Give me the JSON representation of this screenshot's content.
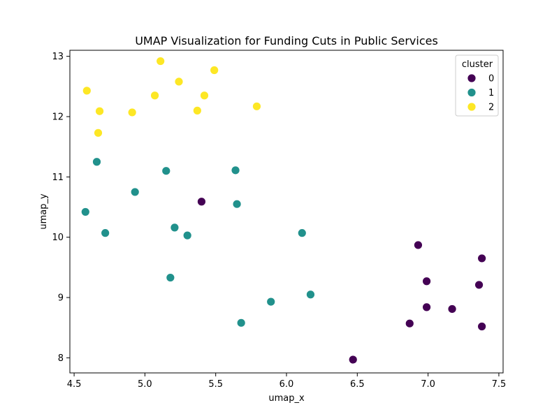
{
  "chart_data": {
    "type": "scatter",
    "title": "UMAP Visualization for Funding Cuts in Public Services",
    "xlabel": "umap_x",
    "ylabel": "umap_y",
    "xlim": [
      4.47,
      7.53
    ],
    "ylim": [
      7.75,
      13.1
    ],
    "xticks": [
      "4.5",
      "5.0",
      "5.5",
      "6.0",
      "6.5",
      "7.0",
      "7.5"
    ],
    "yticks": [
      "8",
      "9",
      "10",
      "11",
      "12",
      "13"
    ],
    "grid": false,
    "legend": {
      "title": "cluster",
      "placement": "top-right",
      "entries": [
        "0",
        "1",
        "2"
      ]
    },
    "series": [
      {
        "name": "0",
        "color": "#440154",
        "points": [
          [
            5.4,
            10.59
          ],
          [
            6.93,
            9.87
          ],
          [
            7.38,
            9.65
          ],
          [
            6.99,
            9.27
          ],
          [
            7.36,
            9.21
          ],
          [
            6.99,
            8.84
          ],
          [
            7.17,
            8.81
          ],
          [
            6.87,
            8.57
          ],
          [
            7.38,
            8.52
          ],
          [
            6.47,
            7.97
          ]
        ]
      },
      {
        "name": "1",
        "color": "#21918c",
        "points": [
          [
            4.66,
            11.25
          ],
          [
            5.15,
            11.1
          ],
          [
            5.64,
            11.11
          ],
          [
            4.93,
            10.75
          ],
          [
            4.58,
            10.42
          ],
          [
            5.65,
            10.55
          ],
          [
            5.21,
            10.16
          ],
          [
            4.72,
            10.07
          ],
          [
            5.3,
            10.03
          ],
          [
            6.11,
            10.07
          ],
          [
            5.18,
            9.33
          ],
          [
            6.17,
            9.05
          ],
          [
            5.89,
            8.93
          ],
          [
            5.68,
            8.58
          ]
        ]
      },
      {
        "name": "2",
        "color": "#fde725",
        "points": [
          [
            5.11,
            12.92
          ],
          [
            5.49,
            12.77
          ],
          [
            5.24,
            12.58
          ],
          [
            4.59,
            12.43
          ],
          [
            5.07,
            12.35
          ],
          [
            5.42,
            12.35
          ],
          [
            5.79,
            12.17
          ],
          [
            4.68,
            12.09
          ],
          [
            4.91,
            12.07
          ],
          [
            5.37,
            12.1
          ],
          [
            4.67,
            11.73
          ]
        ]
      }
    ]
  }
}
